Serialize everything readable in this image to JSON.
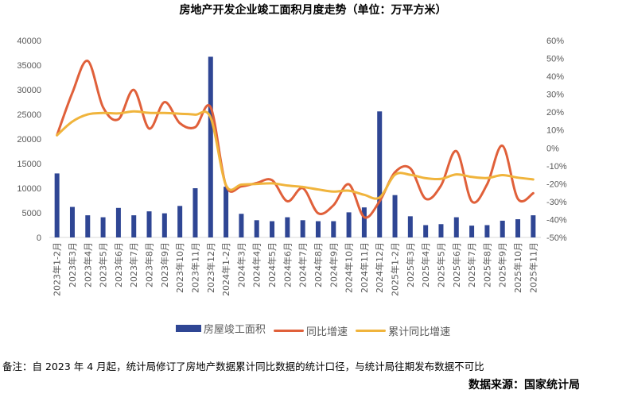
{
  "chart_data": {
    "type": "bar+line",
    "title": "房地产开发企业竣工面积月度走势（单位：万平方米）",
    "categories": [
      "2023年1-2月",
      "2023年3月",
      "2023年4月",
      "2023年5月",
      "2023年6月",
      "2023年7月",
      "2023年8月",
      "2023年9月",
      "2023年10月",
      "2023年11月",
      "2023年12月",
      "2024年1-2月",
      "2024年3月",
      "2024年4月",
      "2024年5月",
      "2024年6月",
      "2024年7月",
      "2024年8月",
      "2024年9月",
      "2024年10月",
      "2024年11月",
      "2024年12月",
      "2025年1-2月",
      "2025年3月",
      "2025年4月",
      "2025年5月",
      "2025年6月",
      "2025年7月",
      "2025年8月",
      "2025年9月",
      "2025年10月",
      "2025年11月"
    ],
    "left_axis": {
      "ylim": [
        0,
        40000
      ],
      "ticks": [
        "0",
        "5000",
        "10000",
        "15000",
        "20000",
        "25000",
        "30000",
        "35000",
        "40000"
      ]
    },
    "right_axis": {
      "ylim": [
        -50,
        60
      ],
      "ticks": [
        "-50%",
        "-40%",
        "-30%",
        "-20%",
        "-10%",
        "0%",
        "10%",
        "20%",
        "30%",
        "40%",
        "50%",
        "60%"
      ]
    },
    "series": [
      {
        "name": "房屋竣工面积",
        "type": "bar",
        "axis": "left",
        "color": "#2F4694",
        "values": [
          13000,
          6200,
          4500,
          4100,
          6000,
          4500,
          5300,
          4900,
          6400,
          10000,
          36700,
          10300,
          4800,
          3500,
          3300,
          4100,
          3500,
          3300,
          3300,
          5100,
          6100,
          25600,
          8600,
          4300,
          2500,
          2700,
          4100,
          2400,
          2500,
          3400,
          3700,
          4500
        ]
      },
      {
        "name": "同比增速",
        "type": "line",
        "axis": "right",
        "unit": "%",
        "color": "#E0603A",
        "values": [
          7.1,
          30.8,
          48.6,
          22.7,
          16.0,
          32.4,
          10.8,
          25.6,
          13.8,
          11.6,
          22.7,
          -21.0,
          -21.5,
          -19.6,
          -18.0,
          -29.8,
          -22.5,
          -36.5,
          -32.0,
          -20.3,
          -38.7,
          -29.8,
          -13.6,
          -11.4,
          -28.4,
          -21.0,
          -1.8,
          -29.8,
          -20.3,
          1.2,
          -28.4,
          -25.3
        ]
      },
      {
        "name": "累计同比增速",
        "type": "line",
        "axis": "right",
        "unit": "%",
        "color": "#F0B43C",
        "values": [
          7.1,
          14.7,
          18.7,
          19.5,
          19.3,
          20.4,
          19.6,
          19.5,
          19.1,
          18.6,
          17.0,
          -20.7,
          -20.5,
          -20.1,
          -19.8,
          -21.0,
          -21.8,
          -23.2,
          -24.4,
          -23.9,
          -26.2,
          -27.7,
          -15.0,
          -15.0,
          -16.9,
          -17.3,
          -14.8,
          -16.2,
          -16.8,
          -15.2,
          -16.6,
          -17.6
        ]
      }
    ],
    "legend": "bottom",
    "grid": false
  },
  "note": "备注：自 2023 年 4 月起，统计局修订了房地产数据累计同比数据的统计口径，与统计局往期发布数据不可比",
  "source": "数据来源：国家统计局"
}
